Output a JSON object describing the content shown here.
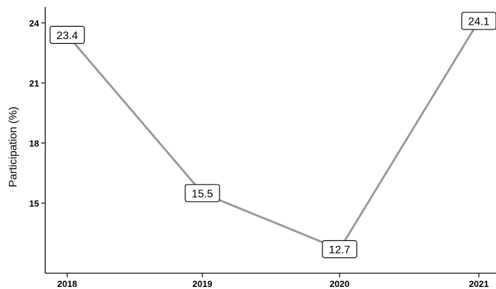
{
  "chart_data": {
    "type": "line",
    "x": [
      "2018",
      "2019",
      "2020",
      "2021"
    ],
    "series": [
      {
        "values": [
          23.4,
          15.5,
          12.7,
          24.1
        ]
      }
    ],
    "data_labels": [
      "23.4",
      "15.5",
      "12.7",
      "24.1"
    ],
    "ylabel": "Participation (%)",
    "xlabel": "",
    "yticks": [
      15,
      18,
      21,
      24
    ],
    "ytick_labels": [
      "15",
      "18",
      "21",
      "24"
    ],
    "xtick_labels": [
      "2018",
      "2019",
      "2020",
      "2021"
    ],
    "ylim": [
      11.5,
      24.8
    ],
    "grid": false,
    "line_color": "#999999"
  }
}
